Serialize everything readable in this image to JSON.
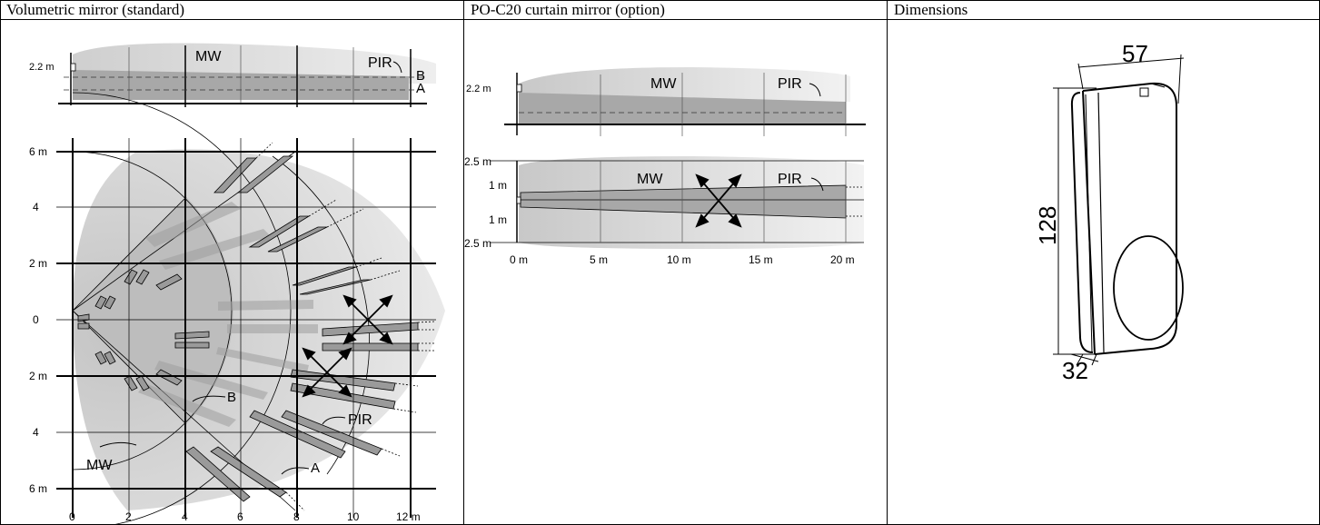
{
  "columns": [
    {
      "label": "Volumetric mirror (standard)"
    },
    {
      "label": "PO-C20 curtain mirror (option)"
    },
    {
      "label": "Dimensions"
    }
  ],
  "volumetric": {
    "side_view": {
      "height_label": "2.2 m",
      "mw_label": "MW",
      "pir_label": "PIR",
      "zone_b": "B",
      "zone_a": "A"
    },
    "top_view": {
      "y_labels": [
        "6 m",
        "4",
        "2 m",
        "0",
        "2 m",
        "4",
        "6 m"
      ],
      "x_labels": [
        "0",
        "2",
        "4",
        "6",
        "8",
        "10",
        "12 m"
      ],
      "label_b": "B",
      "label_pir": "PIR",
      "label_mw": "MW",
      "label_a": "A"
    }
  },
  "curtain": {
    "side_view": {
      "height_label": "2.2 m",
      "mw_label": "MW",
      "pir_label": "PIR"
    },
    "top_view": {
      "y_labels": [
        "2.5 m",
        "1 m",
        "1 m",
        "2.5 m"
      ],
      "x_labels": [
        "0 m",
        "5 m",
        "10 m",
        "15 m",
        "20 m"
      ],
      "mw_label": "MW",
      "pir_label": "PIR"
    }
  },
  "dimensions": {
    "width": "57",
    "height": "128",
    "depth": "32"
  }
}
